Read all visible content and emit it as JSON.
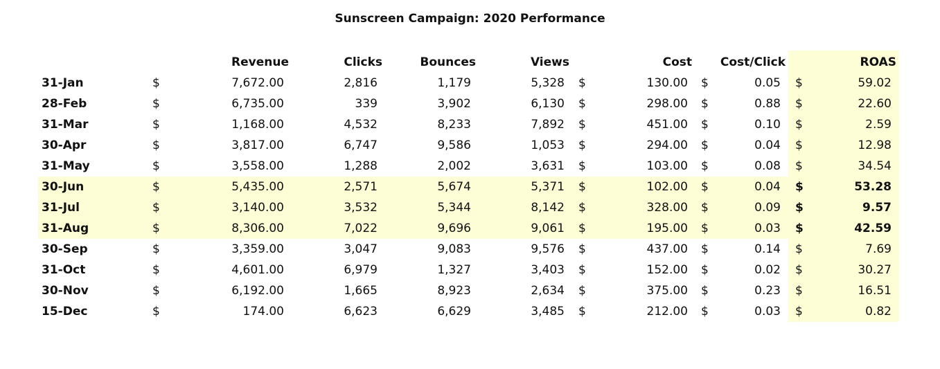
{
  "title": "Sunscreen Campaign: 2020 Performance",
  "headers": {
    "revenue": "Revenue",
    "clicks": "Clicks",
    "bounces": "Bounces",
    "views": "Views",
    "cost": "Cost",
    "cost_click": "Cost/Click",
    "roas": "ROAS"
  },
  "currency_symbol": "$",
  "highlight_color": "#fdfdd6",
  "rows": [
    {
      "date": "31-Jan",
      "revenue": "7,672.00",
      "clicks": "2,816",
      "bounces": "1,179",
      "views": "5,328",
      "cost": "130.00",
      "cost_click": "0.05",
      "roas": "59.02",
      "highlighted": false
    },
    {
      "date": "28-Feb",
      "revenue": "6,735.00",
      "clicks": "339",
      "bounces": "3,902",
      "views": "6,130",
      "cost": "298.00",
      "cost_click": "0.88",
      "roas": "22.60",
      "highlighted": false
    },
    {
      "date": "31-Mar",
      "revenue": "1,168.00",
      "clicks": "4,532",
      "bounces": "8,233",
      "views": "7,892",
      "cost": "451.00",
      "cost_click": "0.10",
      "roas": "2.59",
      "highlighted": false
    },
    {
      "date": "30-Apr",
      "revenue": "3,817.00",
      "clicks": "6,747",
      "bounces": "9,586",
      "views": "1,053",
      "cost": "294.00",
      "cost_click": "0.04",
      "roas": "12.98",
      "highlighted": false
    },
    {
      "date": "31-May",
      "revenue": "3,558.00",
      "clicks": "1,288",
      "bounces": "2,002",
      "views": "3,631",
      "cost": "103.00",
      "cost_click": "0.08",
      "roas": "34.54",
      "highlighted": false
    },
    {
      "date": "30-Jun",
      "revenue": "5,435.00",
      "clicks": "2,571",
      "bounces": "5,674",
      "views": "5,371",
      "cost": "102.00",
      "cost_click": "0.04",
      "roas": "53.28",
      "highlighted": true
    },
    {
      "date": "31-Jul",
      "revenue": "3,140.00",
      "clicks": "3,532",
      "bounces": "5,344",
      "views": "8,142",
      "cost": "328.00",
      "cost_click": "0.09",
      "roas": "9.57",
      "highlighted": true
    },
    {
      "date": "31-Aug",
      "revenue": "8,306.00",
      "clicks": "7,022",
      "bounces": "9,696",
      "views": "9,061",
      "cost": "195.00",
      "cost_click": "0.03",
      "roas": "42.59",
      "highlighted": true
    },
    {
      "date": "30-Sep",
      "revenue": "3,359.00",
      "clicks": "3,047",
      "bounces": "9,083",
      "views": "9,576",
      "cost": "437.00",
      "cost_click": "0.14",
      "roas": "7.69",
      "highlighted": false
    },
    {
      "date": "31-Oct",
      "revenue": "4,601.00",
      "clicks": "6,979",
      "bounces": "1,327",
      "views": "3,403",
      "cost": "152.00",
      "cost_click": "0.02",
      "roas": "30.27",
      "highlighted": false
    },
    {
      "date": "30-Nov",
      "revenue": "6,192.00",
      "clicks": "1,665",
      "bounces": "8,923",
      "views": "2,634",
      "cost": "375.00",
      "cost_click": "0.23",
      "roas": "16.51",
      "highlighted": false
    },
    {
      "date": "15-Dec",
      "revenue": "174.00",
      "clicks": "6,623",
      "bounces": "6,629",
      "views": "3,485",
      "cost": "212.00",
      "cost_click": "0.03",
      "roas": "0.82",
      "highlighted": false
    }
  ]
}
